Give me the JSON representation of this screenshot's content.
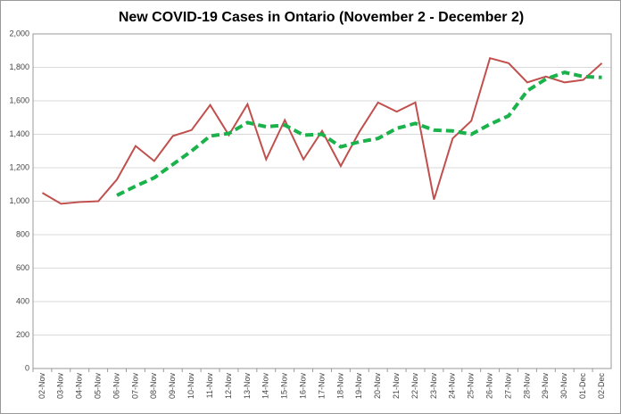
{
  "chart_data": {
    "type": "line",
    "title": "New COVID-19 Cases in Ontario (November 2 - December 2)",
    "categories": [
      "02-Nov",
      "03-Nov",
      "04-Nov",
      "05-Nov",
      "06-Nov",
      "07-Nov",
      "08-Nov",
      "09-Nov",
      "10-Nov",
      "11-Nov",
      "12-Nov",
      "13-Nov",
      "14-Nov",
      "15-Nov",
      "16-Nov",
      "17-Nov",
      "18-Nov",
      "19-Nov",
      "20-Nov",
      "21-Nov",
      "22-Nov",
      "23-Nov",
      "24-Nov",
      "25-Nov",
      "26-Nov",
      "27-Nov",
      "28-Nov",
      "29-Nov",
      "30-Nov",
      "01-Dec",
      "02-Dec"
    ],
    "series": [
      {
        "color": "#c0504d",
        "dashed": false,
        "values": [
          1050,
          985,
          995,
          1000,
          1130,
          1330,
          1240,
          1390,
          1425,
          1575,
          1395,
          1580,
          1250,
          1485,
          1250,
          1420,
          1210,
          1415,
          1590,
          1535,
          1590,
          1010,
          1375,
          1480,
          1855,
          1825,
          1710,
          1745,
          1710,
          1725,
          1825
        ]
      },
      {
        "color": "#1ab24a",
        "dashed": true,
        "values": [
          null,
          null,
          null,
          null,
          1035,
          1090,
          1140,
          1220,
          1300,
          1390,
          1405,
          1470,
          1445,
          1455,
          1395,
          1400,
          1325,
          1355,
          1375,
          1435,
          1465,
          1425,
          1420,
          1400,
          1460,
          1510,
          1660,
          1730,
          1770,
          1745,
          1740
        ]
      }
    ],
    "ylim": [
      0,
      2000
    ],
    "yticks": [
      0,
      200,
      400,
      600,
      800,
      {
        "value": 1000,
        "label": "1,000"
      },
      {
        "value": 1200,
        "label": "1,200"
      },
      {
        "value": 1400,
        "label": "1,400"
      },
      {
        "value": 1600,
        "label": "1,600"
      },
      {
        "value": 1800,
        "label": "1,800"
      },
      {
        "value": 2000,
        "label": "2,000"
      }
    ],
    "grid": true
  }
}
